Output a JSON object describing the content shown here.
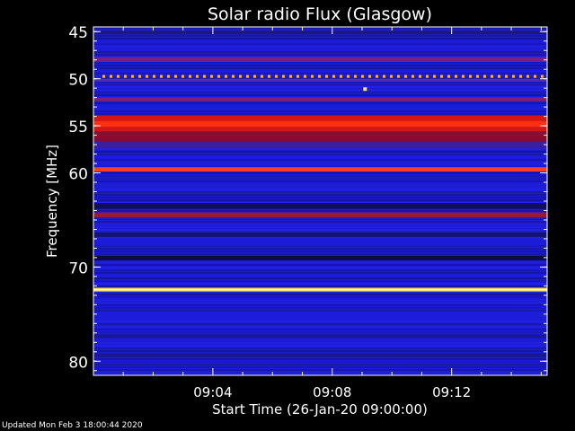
{
  "chart_data": {
    "type": "heatmap",
    "title": "Solar radio Flux (Glasgow)",
    "ylabel": "Frequency [MHz]",
    "xlabel": "Start Time (26-Jan-20 09:00:00)",
    "ylim": [
      44.5,
      81.5
    ],
    "y_ticks": [
      45,
      50,
      55,
      60,
      70,
      80
    ],
    "xlim_minutes": [
      0,
      15.2
    ],
    "x_ticks": [
      {
        "minute": 4,
        "label": "09:04"
      },
      {
        "minute": 8,
        "label": "09:08"
      },
      {
        "minute": 12,
        "label": "09:12"
      }
    ],
    "background_color": "#1c1cd8",
    "bands": [
      {
        "freq_from": 44.9,
        "freq_to": 45.3,
        "color": "#1a1a78"
      },
      {
        "freq_from": 47.7,
        "freq_to": 48.2,
        "color": "#7a2080"
      },
      {
        "freq_from": 49.6,
        "freq_to": 49.9,
        "color": "#ffb040",
        "dashed": true
      },
      {
        "freq_from": 50.0,
        "freq_to": 50.3,
        "color": "#5030b0"
      },
      {
        "freq_from": 52.0,
        "freq_to": 52.4,
        "color": "#7a2080"
      },
      {
        "freq_from": 53.9,
        "freq_to": 55.9,
        "color": "#d01818"
      },
      {
        "freq_from": 54.5,
        "freq_to": 55.1,
        "color": "#ff3010"
      },
      {
        "freq_from": 55.6,
        "freq_to": 56.6,
        "color": "#8a0c30"
      },
      {
        "freq_from": 56.6,
        "freq_to": 57.4,
        "color": "#3a20a0"
      },
      {
        "freq_from": 59.4,
        "freq_to": 59.85,
        "color": "#ff4020"
      },
      {
        "freq_from": 63.2,
        "freq_to": 63.8,
        "color": "#10105a"
      },
      {
        "freq_from": 64.2,
        "freq_to": 64.7,
        "color": "#a01830"
      },
      {
        "freq_from": 66.3,
        "freq_to": 66.8,
        "color": "#141470"
      },
      {
        "freq_from": 68.8,
        "freq_to": 69.3,
        "color": "#0c0c40"
      },
      {
        "freq_from": 72.2,
        "freq_to": 72.6,
        "color": "#ffd040"
      },
      {
        "freq_from": 72.33,
        "freq_to": 72.47,
        "color": "#ffffff"
      },
      {
        "freq_from": 77.2,
        "freq_to": 77.5,
        "color": "#1a1a90"
      },
      {
        "freq_from": 79.2,
        "freq_to": 79.5,
        "color": "#1a1a90"
      }
    ],
    "burst": {
      "minute": 9.1,
      "freq": 51.1,
      "color": "#ffe060"
    }
  },
  "footer": {
    "updated": "Updated Mon Feb  3 18:00:44 2020"
  }
}
